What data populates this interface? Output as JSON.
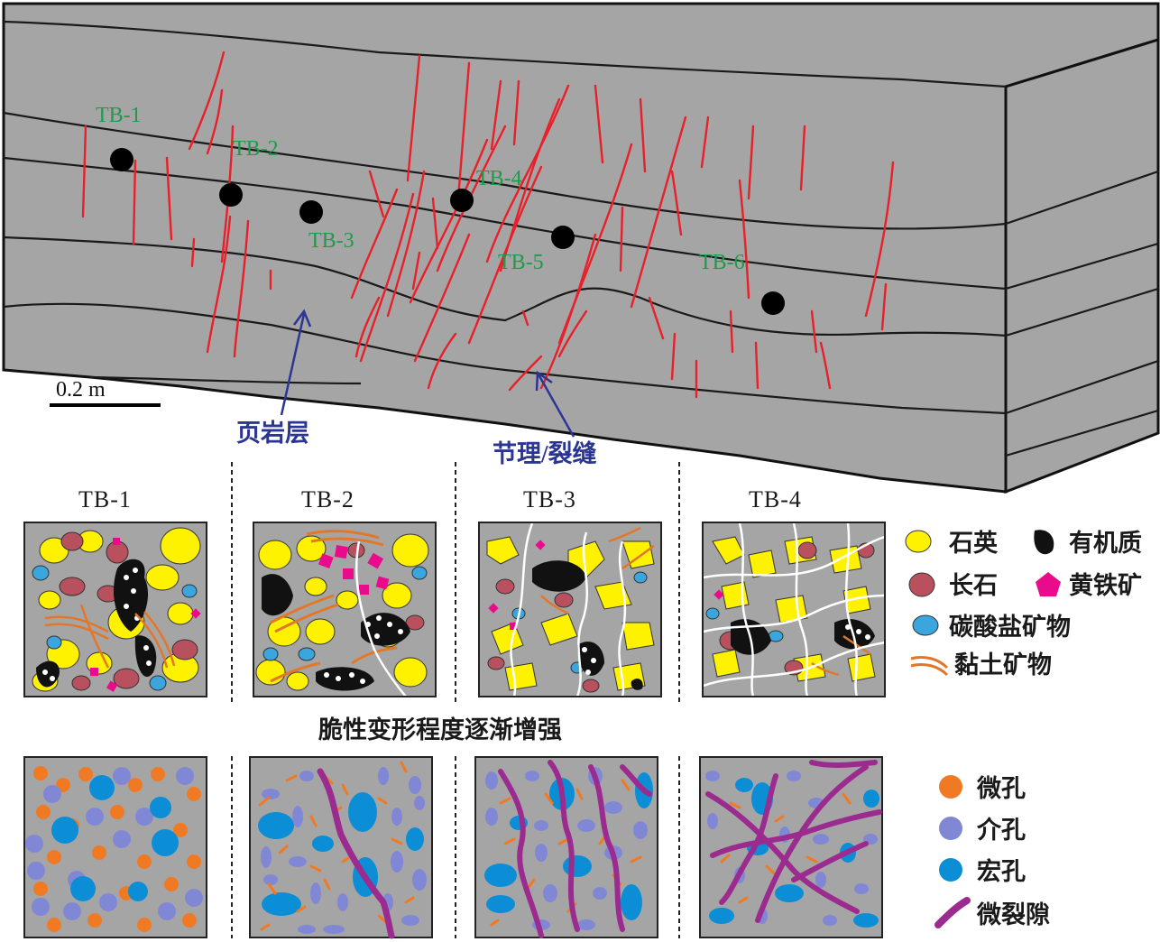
{
  "block": {
    "sample_points": [
      {
        "id": "TB-1"
      },
      {
        "id": "TB-2"
      },
      {
        "id": "TB-3"
      },
      {
        "id": "TB-4"
      },
      {
        "id": "TB-5"
      },
      {
        "id": "TB-6"
      }
    ],
    "scale_label": "0.2 m",
    "shale_layer_label": "页岩层",
    "joint_label": "节理/裂缝"
  },
  "panels": [
    "TB-1",
    "TB-2",
    "TB-3",
    "TB-4"
  ],
  "mineral_legend": {
    "quartz": "石英",
    "organic": "有机质",
    "feldspar": "长石",
    "pyrite": "黄铁矿",
    "carbonate": "碳酸盐矿物",
    "clay": "黏土矿物"
  },
  "middle_label": "脆性变形程度逐渐增强",
  "pore_legend": {
    "micro": "微孔",
    "meso": "介孔",
    "macro": "宏孔",
    "microfracture": "微裂隙"
  },
  "colors": {
    "rock": "#a6a5a6",
    "fracture": "#e8202a",
    "quartz": "#fff200",
    "feldspar": "#b9505e",
    "carbonate": "#3aa6dd",
    "pyrite": "#ea0a8c",
    "clay": "#e2772a",
    "micropore": "#f07a23",
    "mesopore": "#8088d6",
    "macropore": "#0c8ed6",
    "microfracture": "#9b2b8e",
    "label_green": "#1e9a4a",
    "label_blue": "#2b3592"
  }
}
